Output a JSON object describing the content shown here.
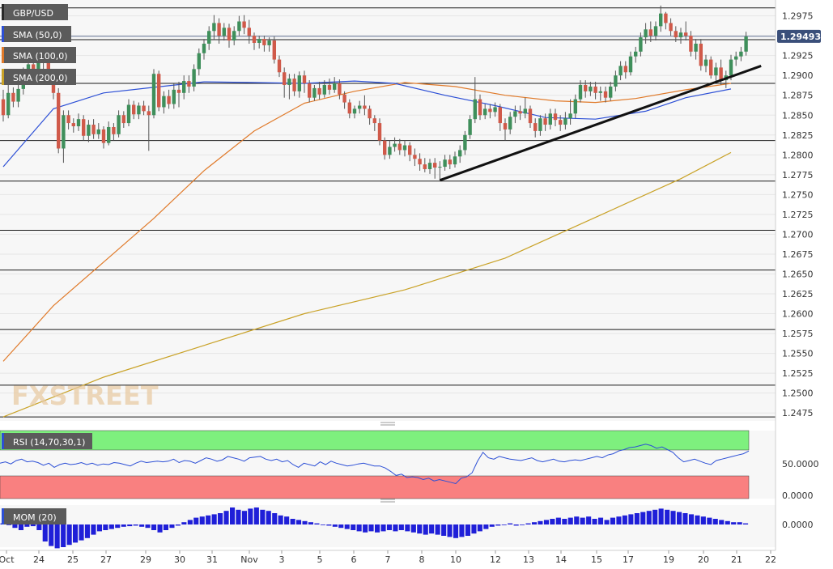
{
  "chart_data": {
    "type": "candlestick",
    "symbol": "GBP/USD",
    "last_price": "1.29493",
    "ylim": [
      1.2465,
      1.2995
    ],
    "y_ticks": [
      "1.2975",
      "1.2950",
      "1.2925",
      "1.2900",
      "1.2875",
      "1.2850",
      "1.2825",
      "1.2800",
      "1.2775",
      "1.2750",
      "1.2725",
      "1.2700",
      "1.2675",
      "1.2650",
      "1.2625",
      "1.2600",
      "1.2575",
      "1.2550",
      "1.2525",
      "1.2500",
      "1.2475"
    ],
    "x_ticks": [
      "Oct",
      "24",
      "25",
      "27",
      "29",
      "30",
      "31",
      "Nov",
      "3",
      "5",
      "6",
      "7",
      "8",
      "10",
      "12",
      "13",
      "14",
      "15",
      "17",
      "19",
      "20",
      "21",
      "22"
    ],
    "horizontal_levels": [
      1.2985,
      1.2945,
      1.289,
      1.2818,
      1.2767,
      1.2705,
      1.2655,
      1.258,
      1.251,
      1.247
    ],
    "trendline": [
      {
        "bar": 87,
        "price": 1.2768
      },
      {
        "bar": 151,
        "price": 1.2912
      }
    ],
    "indicators": {
      "sma50": {
        "label": "SMA (50,0)",
        "color": "#2c4fd6"
      },
      "sma100": {
        "label": "SMA (100,0)",
        "color": "#e07a2a"
      },
      "sma200": {
        "label": "SMA (200,0)",
        "color": "#c9a227"
      }
    },
    "sma50_points": [
      [
        0,
        1.2785
      ],
      [
        10,
        1.2858
      ],
      [
        20,
        1.2878
      ],
      [
        30,
        1.2885
      ],
      [
        40,
        1.2892
      ],
      [
        50,
        1.2891
      ],
      [
        60,
        1.289
      ],
      [
        70,
        1.2893
      ],
      [
        78,
        1.289
      ],
      [
        88,
        1.2875
      ],
      [
        98,
        1.2862
      ],
      [
        108,
        1.2847
      ],
      [
        118,
        1.2845
      ],
      [
        128,
        1.2855
      ],
      [
        136,
        1.2872
      ],
      [
        145,
        1.2883
      ]
    ],
    "sma100_points": [
      [
        0,
        1.254
      ],
      [
        10,
        1.261
      ],
      [
        20,
        1.2665
      ],
      [
        30,
        1.272
      ],
      [
        40,
        1.278
      ],
      [
        50,
        1.283
      ],
      [
        60,
        1.2865
      ],
      [
        70,
        1.288
      ],
      [
        80,
        1.2891
      ],
      [
        90,
        1.2886
      ],
      [
        100,
        1.2875
      ],
      [
        110,
        1.2868
      ],
      [
        118,
        1.2866
      ],
      [
        126,
        1.2871
      ],
      [
        136,
        1.2882
      ],
      [
        145,
        1.289
      ]
    ],
    "sma200_points": [
      [
        0,
        1.247
      ],
      [
        20,
        1.252
      ],
      [
        40,
        1.256
      ],
      [
        60,
        1.26
      ],
      [
        80,
        1.263
      ],
      [
        100,
        1.267
      ],
      [
        120,
        1.2727
      ],
      [
        135,
        1.277
      ],
      [
        145,
        1.2803
      ]
    ],
    "candles": [
      [
        1.287,
        1.285,
        1.2882,
        1.2842
      ],
      [
        1.285,
        1.2878,
        1.289,
        1.2846
      ],
      [
        1.2878,
        1.2867,
        1.2885,
        1.286
      ],
      [
        1.2867,
        1.2883,
        1.2893,
        1.286
      ],
      [
        1.2883,
        1.29,
        1.291,
        1.2876
      ],
      [
        1.29,
        1.2914,
        1.2924,
        1.2892
      ],
      [
        1.2914,
        1.2908,
        1.292,
        1.2899
      ],
      [
        1.2908,
        1.2924,
        1.2933,
        1.2903
      ],
      [
        1.2924,
        1.2916,
        1.293,
        1.2908
      ],
      [
        1.2916,
        1.2898,
        1.2922,
        1.289
      ],
      [
        1.2898,
        1.2878,
        1.2904,
        1.287
      ],
      [
        1.2878,
        1.2808,
        1.2884,
        1.2802
      ],
      [
        1.2808,
        1.285,
        1.2856,
        1.279
      ],
      [
        1.285,
        1.284,
        1.2856,
        1.2832
      ],
      [
        1.284,
        1.2836,
        1.2846,
        1.2828
      ],
      [
        1.2836,
        1.2845,
        1.2852,
        1.283
      ],
      [
        1.2845,
        1.2824,
        1.285,
        1.2818
      ],
      [
        1.2824,
        1.2838,
        1.2844,
        1.2816
      ],
      [
        1.2838,
        1.2826,
        1.2845,
        1.282
      ],
      [
        1.2826,
        1.2832,
        1.284,
        1.282
      ],
      [
        1.2832,
        1.2815,
        1.2836,
        1.2808
      ],
      [
        1.2815,
        1.2835,
        1.2842,
        1.2812
      ],
      [
        1.2835,
        1.2826,
        1.284,
        1.2818
      ],
      [
        1.2826,
        1.285,
        1.2856,
        1.2822
      ],
      [
        1.285,
        1.284,
        1.2855,
        1.2834
      ],
      [
        1.284,
        1.2863,
        1.287,
        1.2836
      ],
      [
        1.2863,
        1.2851,
        1.2868,
        1.2845
      ],
      [
        1.2851,
        1.2862,
        1.2866,
        1.2845
      ],
      [
        1.2862,
        1.2855,
        1.2868,
        1.285
      ],
      [
        1.2855,
        1.285,
        1.2862,
        1.2805
      ],
      [
        1.285,
        1.2902,
        1.2908,
        1.2846
      ],
      [
        1.2902,
        1.286,
        1.2906,
        1.2855
      ],
      [
        1.286,
        1.2874,
        1.288,
        1.2852
      ],
      [
        1.2874,
        1.2864,
        1.2882,
        1.2858
      ],
      [
        1.2864,
        1.2882,
        1.289,
        1.2858
      ],
      [
        1.2882,
        1.2878,
        1.2892,
        1.286
      ],
      [
        1.2878,
        1.2893,
        1.29,
        1.287
      ],
      [
        1.2893,
        1.2886,
        1.29,
        1.2878
      ],
      [
        1.2886,
        1.2908,
        1.2914,
        1.288
      ],
      [
        1.2908,
        1.2928,
        1.2934,
        1.29
      ],
      [
        1.2928,
        1.294,
        1.2946,
        1.292
      ],
      [
        1.294,
        1.2956,
        1.2962,
        1.2932
      ],
      [
        1.2956,
        1.2966,
        1.2976,
        1.2945
      ],
      [
        1.2966,
        1.295,
        1.2972,
        1.294
      ],
      [
        1.295,
        1.296,
        1.2966,
        1.2944
      ],
      [
        1.296,
        1.2944,
        1.2965,
        1.2935
      ],
      [
        1.2944,
        1.2956,
        1.2962,
        1.2938
      ],
      [
        1.2956,
        1.2968,
        1.2975,
        1.295
      ],
      [
        1.2968,
        1.296,
        1.2976,
        1.2952
      ],
      [
        1.296,
        1.295,
        1.297,
        1.294
      ],
      [
        1.295,
        1.2941,
        1.2954,
        1.2932
      ],
      [
        1.2941,
        1.2946,
        1.295,
        1.2934
      ],
      [
        1.2946,
        1.2938,
        1.295,
        1.293
      ],
      [
        1.2938,
        1.2944,
        1.2948,
        1.293
      ],
      [
        1.2944,
        1.292,
        1.2949,
        1.2915
      ],
      [
        1.292,
        1.2904,
        1.2925,
        1.2898
      ],
      [
        1.2904,
        1.2888,
        1.291,
        1.2872
      ],
      [
        1.2888,
        1.2896,
        1.2902,
        1.287
      ],
      [
        1.2896,
        1.288,
        1.2902,
        1.2874
      ],
      [
        1.288,
        1.29,
        1.2905,
        1.2872
      ],
      [
        1.29,
        1.289,
        1.2906,
        1.2878
      ],
      [
        1.289,
        1.2872,
        1.2894,
        1.2866
      ],
      [
        1.2872,
        1.2884,
        1.2888,
        1.2868
      ],
      [
        1.2884,
        1.2876,
        1.2892,
        1.287
      ],
      [
        1.2876,
        1.2888,
        1.2894,
        1.2872
      ],
      [
        1.2888,
        1.2882,
        1.2896,
        1.2876
      ],
      [
        1.2882,
        1.289,
        1.2898,
        1.2878
      ],
      [
        1.289,
        1.2876,
        1.2895,
        1.287
      ],
      [
        1.2876,
        1.2866,
        1.288,
        1.2858
      ],
      [
        1.2866,
        1.2852,
        1.287,
        1.2846
      ],
      [
        1.2852,
        1.2858,
        1.2862,
        1.2846
      ],
      [
        1.2858,
        1.2862,
        1.2868,
        1.2852
      ],
      [
        1.2862,
        1.2858,
        1.2875,
        1.285
      ],
      [
        1.2858,
        1.2846,
        1.2862,
        1.2838
      ],
      [
        1.2846,
        1.284,
        1.285,
        1.283
      ],
      [
        1.284,
        1.2818,
        1.2846,
        1.2812
      ],
      [
        1.2818,
        1.28,
        1.2822,
        1.2794
      ],
      [
        1.28,
        1.281,
        1.2818,
        1.2795
      ],
      [
        1.281,
        1.2814,
        1.2822,
        1.2804
      ],
      [
        1.2814,
        1.2806,
        1.282,
        1.28
      ],
      [
        1.2806,
        1.2812,
        1.2818,
        1.2798
      ],
      [
        1.2812,
        1.28,
        1.2816,
        1.2792
      ],
      [
        1.28,
        1.2795,
        1.2808,
        1.2786
      ],
      [
        1.2795,
        1.2788,
        1.2802,
        1.278
      ],
      [
        1.2788,
        1.2782,
        1.2796,
        1.2778
      ],
      [
        1.2782,
        1.279,
        1.2795,
        1.2776
      ],
      [
        1.279,
        1.2784,
        1.2796,
        1.277
      ],
      [
        1.2784,
        1.2785,
        1.2792,
        1.2768
      ],
      [
        1.2785,
        1.2794,
        1.28,
        1.278
      ],
      [
        1.2794,
        1.2788,
        1.28,
        1.2782
      ],
      [
        1.2788,
        1.2798,
        1.2804,
        1.2784
      ],
      [
        1.2798,
        1.2806,
        1.2812,
        1.279
      ],
      [
        1.2806,
        1.2825,
        1.283,
        1.28
      ],
      [
        1.2825,
        1.2845,
        1.285,
        1.282
      ],
      [
        1.2845,
        1.287,
        1.2898,
        1.284
      ],
      [
        1.287,
        1.285,
        1.2876,
        1.2844
      ],
      [
        1.285,
        1.2858,
        1.2864,
        1.2845
      ],
      [
        1.2858,
        1.2854,
        1.2864,
        1.2846
      ],
      [
        1.2854,
        1.286,
        1.2866,
        1.2848
      ],
      [
        1.286,
        1.284,
        1.2864,
        1.283
      ],
      [
        1.284,
        1.2832,
        1.2846,
        1.2818
      ],
      [
        1.2832,
        1.2848,
        1.2854,
        1.2826
      ],
      [
        1.2848,
        1.2855,
        1.2862,
        1.284
      ],
      [
        1.2855,
        1.2852,
        1.2862,
        1.2844
      ],
      [
        1.2852,
        1.2858,
        1.2872,
        1.2846
      ],
      [
        1.2858,
        1.284,
        1.2862,
        1.2834
      ],
      [
        1.284,
        1.283,
        1.2846,
        1.2822
      ],
      [
        1.283,
        1.2846,
        1.285,
        1.2824
      ],
      [
        1.2846,
        1.2838,
        1.2852,
        1.283
      ],
      [
        1.2838,
        1.2852,
        1.2858,
        1.2832
      ],
      [
        1.2852,
        1.2844,
        1.2858,
        1.2836
      ],
      [
        1.2844,
        1.2838,
        1.285,
        1.283
      ],
      [
        1.2838,
        1.2846,
        1.2854,
        1.2832
      ],
      [
        1.2846,
        1.2852,
        1.287,
        1.2838
      ],
      [
        1.2852,
        1.287,
        1.2876,
        1.2846
      ],
      [
        1.287,
        1.2888,
        1.2894,
        1.2866
      ],
      [
        1.2888,
        1.288,
        1.2894,
        1.2872
      ],
      [
        1.288,
        1.2886,
        1.2892,
        1.2874
      ],
      [
        1.2886,
        1.2878,
        1.2892,
        1.287
      ],
      [
        1.2878,
        1.288,
        1.2886,
        1.2868
      ],
      [
        1.288,
        1.2872,
        1.2886,
        1.2866
      ],
      [
        1.2872,
        1.2886,
        1.2892,
        1.2868
      ],
      [
        1.2886,
        1.29,
        1.2906,
        1.288
      ],
      [
        1.29,
        1.2912,
        1.2918,
        1.2894
      ],
      [
        1.2912,
        1.2904,
        1.2918,
        1.2896
      ],
      [
        1.2904,
        1.2924,
        1.293,
        1.29
      ],
      [
        1.2924,
        1.293,
        1.2936,
        1.2916
      ],
      [
        1.293,
        1.2948,
        1.2954,
        1.2924
      ],
      [
        1.2948,
        1.2958,
        1.2966,
        1.294
      ],
      [
        1.2958,
        1.295,
        1.2968,
        1.2942
      ],
      [
        1.295,
        1.2962,
        1.2968,
        1.2944
      ],
      [
        1.2962,
        1.2978,
        1.2988,
        1.2955
      ],
      [
        1.2978,
        1.2966,
        1.298,
        1.2958
      ],
      [
        1.2966,
        1.2956,
        1.2972,
        1.295
      ],
      [
        1.2956,
        1.2948,
        1.2962,
        1.2942
      ],
      [
        1.2948,
        1.2954,
        1.296,
        1.294
      ],
      [
        1.2954,
        1.295,
        1.2968,
        1.2944
      ],
      [
        1.295,
        1.293,
        1.2956,
        1.2924
      ],
      [
        1.293,
        1.294,
        1.2946,
        1.292
      ],
      [
        1.294,
        1.2912,
        1.2946,
        1.2906
      ],
      [
        1.2912,
        1.292,
        1.2926,
        1.2904
      ],
      [
        1.292,
        1.29,
        1.2924,
        1.2896
      ],
      [
        1.29,
        1.291,
        1.2916,
        1.2892
      ],
      [
        1.291,
        1.2894,
        1.292,
        1.2888
      ],
      [
        1.2894,
        1.29,
        1.2906,
        1.2884
      ],
      [
        1.29,
        1.292,
        1.2926,
        1.2894
      ],
      [
        1.292,
        1.2924,
        1.293,
        1.2912
      ],
      [
        1.2924,
        1.293,
        1.2936,
        1.2918
      ],
      [
        1.293,
        1.2949,
        1.2955,
        1.2925
      ]
    ],
    "rsi": {
      "label": "RSI (14,70,30,1)",
      "overbought": 70,
      "oversold": 30,
      "ticks": [
        "50.0000",
        "0.0000"
      ],
      "values": [
        52,
        54,
        51,
        56,
        58,
        54,
        55,
        53,
        49,
        52,
        46,
        50,
        52,
        50,
        51,
        53,
        50,
        52,
        49,
        51,
        50,
        53,
        52,
        50,
        48,
        52,
        55,
        53,
        54,
        55,
        54,
        55,
        58,
        53,
        56,
        55,
        52,
        56,
        60,
        58,
        55,
        57,
        62,
        60,
        58,
        55,
        60,
        61,
        62,
        58,
        56,
        58,
        54,
        56,
        50,
        46,
        52,
        50,
        48,
        54,
        50,
        55,
        52,
        50,
        48,
        49,
        51,
        52,
        50,
        48,
        48,
        45,
        40,
        34,
        36,
        31,
        32,
        31,
        28,
        30,
        26,
        28,
        26,
        24,
        22,
        30,
        32,
        38,
        55,
        68,
        60,
        58,
        62,
        60,
        58,
        57,
        56,
        58,
        60,
        56,
        54,
        56,
        58,
        55,
        54,
        56,
        57,
        56,
        58,
        60,
        62,
        60,
        64,
        66,
        70,
        72,
        75,
        76,
        78,
        80,
        78,
        74,
        76,
        72,
        68,
        60,
        54,
        56,
        58,
        55,
        52,
        50,
        56,
        58,
        60,
        62,
        64,
        66,
        70
      ]
    },
    "mom": {
      "label": "MOM (20)",
      "ticks": [
        "0.0000"
      ],
      "values": [
        0.0002,
        -0.0001,
        -0.0006,
        -0.001,
        -0.0004,
        -0.0003,
        -0.001,
        -0.003,
        -0.0038,
        -0.0042,
        -0.004,
        -0.0036,
        -0.0032,
        -0.0028,
        -0.0024,
        -0.0018,
        -0.0012,
        -0.001,
        -0.0008,
        -0.0006,
        -0.0004,
        -0.0003,
        -0.0002,
        -0.0004,
        -0.0006,
        -0.001,
        -0.0014,
        -0.001,
        -0.0006,
        -0.0002,
        0.0004,
        0.0008,
        0.0012,
        0.0014,
        0.0016,
        0.0018,
        0.002,
        0.0024,
        0.003,
        0.0026,
        0.0024,
        0.0028,
        0.003,
        0.0026,
        0.0024,
        0.002,
        0.0016,
        0.0014,
        0.001,
        0.0008,
        0.0006,
        0.0004,
        0.0002,
        0.0,
        -0.0002,
        -0.0004,
        -0.0006,
        -0.0008,
        -0.001,
        -0.0012,
        -0.0014,
        -0.0012,
        -0.0014,
        -0.0012,
        -0.001,
        -0.0012,
        -0.001,
        -0.0012,
        -0.0014,
        -0.0016,
        -0.0018,
        -0.0016,
        -0.0018,
        -0.002,
        -0.0022,
        -0.0024,
        -0.0022,
        -0.002,
        -0.0016,
        -0.0012,
        -0.0008,
        -0.0004,
        -0.0002,
        0.0,
        0.0002,
        -0.0002,
        0.0,
        0.0002,
        0.0004,
        0.0006,
        0.0008,
        0.001,
        0.0012,
        0.001,
        0.0012,
        0.0014,
        0.0012,
        0.0014,
        0.001,
        0.0012,
        0.0008,
        0.0012,
        0.0014,
        0.0016,
        0.0018,
        0.002,
        0.0022,
        0.0024,
        0.0026,
        0.0028,
        0.0026,
        0.0024,
        0.0022,
        0.002,
        0.0018,
        0.0016,
        0.0014,
        0.0012,
        0.001,
        0.0008,
        0.0006,
        0.0004,
        0.0004,
        0.0002
      ]
    },
    "watermark": "FXSTREET"
  }
}
